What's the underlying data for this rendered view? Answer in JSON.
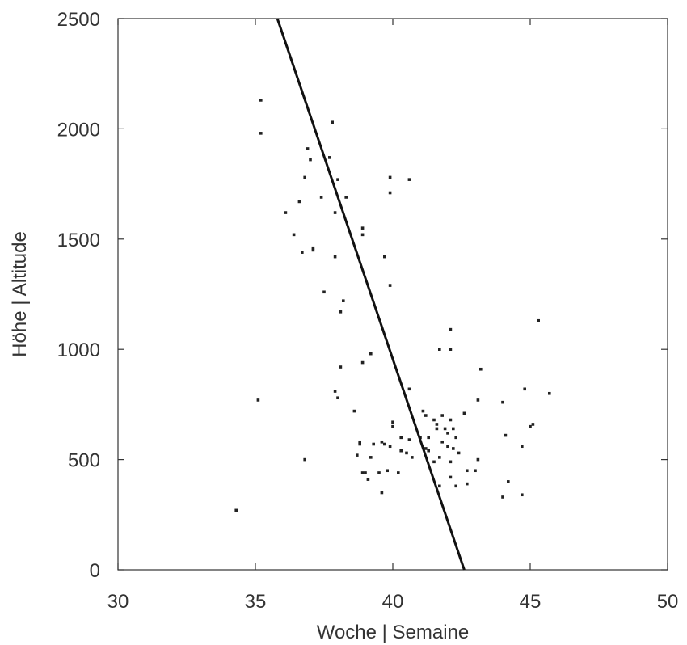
{
  "chart_data": {
    "type": "scatter",
    "title": "",
    "xlabel": "Woche | Semaine",
    "ylabel": "Höhe | Altitude",
    "xlim": [
      30,
      50
    ],
    "ylim": [
      0,
      2500
    ],
    "x_ticks": [
      30,
      35,
      40,
      45,
      50
    ],
    "y_ticks": [
      0,
      500,
      1000,
      1500,
      2000,
      2500
    ],
    "grid": false,
    "legend": "none",
    "colors": {
      "points": "#222222",
      "line": "#111111",
      "axes": "#333333"
    },
    "series": [
      {
        "type": "scatter",
        "points": [
          [
            35.2,
            2130
          ],
          [
            35.2,
            1980
          ],
          [
            35.1,
            770
          ],
          [
            34.3,
            270
          ],
          [
            36.9,
            1910
          ],
          [
            37.0,
            1860
          ],
          [
            37.8,
            2030
          ],
          [
            37.7,
            1870
          ],
          [
            36.8,
            1780
          ],
          [
            36.6,
            1670
          ],
          [
            36.1,
            1620
          ],
          [
            36.4,
            1520
          ],
          [
            36.7,
            1440
          ],
          [
            37.1,
            1450
          ],
          [
            37.1,
            1460
          ],
          [
            37.4,
            1690
          ],
          [
            37.9,
            1620
          ],
          [
            38.0,
            1770
          ],
          [
            38.3,
            1690
          ],
          [
            37.9,
            1420
          ],
          [
            38.9,
            1550
          ],
          [
            38.9,
            1520
          ],
          [
            37.5,
            1260
          ],
          [
            38.2,
            1220
          ],
          [
            38.1,
            1170
          ],
          [
            39.9,
            1780
          ],
          [
            40.6,
            1770
          ],
          [
            39.9,
            1710
          ],
          [
            39.7,
            1420
          ],
          [
            39.9,
            1290
          ],
          [
            42.1,
            1090
          ],
          [
            41.7,
            1000
          ],
          [
            42.1,
            1000
          ],
          [
            45.3,
            1130
          ],
          [
            38.1,
            920
          ],
          [
            38.9,
            940
          ],
          [
            39.2,
            980
          ],
          [
            40.6,
            820
          ],
          [
            43.2,
            910
          ],
          [
            37.9,
            810
          ],
          [
            38.0,
            780
          ],
          [
            38.6,
            720
          ],
          [
            44.8,
            820
          ],
          [
            45.7,
            800
          ],
          [
            44.0,
            760
          ],
          [
            43.1,
            770
          ],
          [
            45.0,
            650
          ],
          [
            45.1,
            660
          ],
          [
            36.8,
            500
          ],
          [
            40.0,
            670
          ],
          [
            40.0,
            650
          ],
          [
            39.9,
            560
          ],
          [
            40.3,
            600
          ],
          [
            40.6,
            590
          ],
          [
            40.3,
            540
          ],
          [
            40.5,
            530
          ],
          [
            38.8,
            580
          ],
          [
            38.8,
            570
          ],
          [
            39.3,
            570
          ],
          [
            39.6,
            580
          ],
          [
            39.7,
            570
          ],
          [
            38.7,
            520
          ],
          [
            39.2,
            510
          ],
          [
            38.9,
            440
          ],
          [
            39.0,
            440
          ],
          [
            39.1,
            410
          ],
          [
            39.5,
            440
          ],
          [
            39.8,
            450
          ],
          [
            40.2,
            440
          ],
          [
            39.6,
            350
          ],
          [
            40.7,
            510
          ],
          [
            41.1,
            720
          ],
          [
            41.2,
            700
          ],
          [
            41.5,
            680
          ],
          [
            41.6,
            660
          ],
          [
            41.8,
            700
          ],
          [
            42.1,
            680
          ],
          [
            41.3,
            600
          ],
          [
            41.6,
            640
          ],
          [
            41.9,
            640
          ],
          [
            42.0,
            620
          ],
          [
            42.2,
            640
          ],
          [
            42.3,
            600
          ],
          [
            41.8,
            580
          ],
          [
            42.0,
            560
          ],
          [
            42.2,
            550
          ],
          [
            42.4,
            530
          ],
          [
            42.6,
            710
          ],
          [
            41.0,
            600
          ],
          [
            41.2,
            550
          ],
          [
            41.3,
            540
          ],
          [
            41.7,
            510
          ],
          [
            41.5,
            490
          ],
          [
            42.1,
            490
          ],
          [
            42.7,
            450
          ],
          [
            43.0,
            450
          ],
          [
            43.1,
            500
          ],
          [
            42.1,
            420
          ],
          [
            42.3,
            380
          ],
          [
            41.7,
            380
          ],
          [
            42.7,
            390
          ],
          [
            44.1,
            610
          ],
          [
            44.7,
            560
          ],
          [
            44.2,
            400
          ],
          [
            44.0,
            330
          ],
          [
            44.7,
            340
          ]
        ]
      },
      {
        "type": "line",
        "points": [
          [
            35.8,
            2500
          ],
          [
            42.6,
            0
          ]
        ]
      }
    ]
  }
}
